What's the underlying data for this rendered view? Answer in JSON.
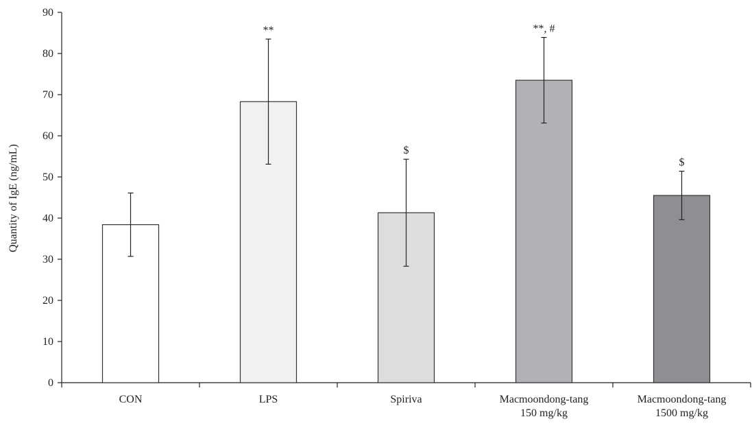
{
  "chart_data": {
    "type": "bar",
    "ylabel": "Quantity of IgE (ng/mL)",
    "ylim": [
      0,
      90
    ],
    "yticks": [
      0,
      10,
      20,
      30,
      40,
      50,
      60,
      70,
      80,
      90
    ],
    "grid": false,
    "categories": [
      [
        "CON"
      ],
      [
        "LPS"
      ],
      [
        "Spiriva"
      ],
      [
        "Macmoondong-tang",
        "150 mg/kg"
      ],
      [
        "Macmoondong-tang",
        "1500 mg/kg"
      ]
    ],
    "values": [
      38.4,
      68.3,
      41.3,
      73.5,
      45.5
    ],
    "error": [
      7.7,
      15.2,
      13.0,
      10.4,
      5.9
    ],
    "annotations": [
      "",
      "**",
      "$",
      "**, #",
      "$"
    ],
    "colors": [
      "#ffffff",
      "#f0f1f3",
      "#dcdddf",
      "#b1b2b6",
      "#8e8f93"
    ]
  }
}
